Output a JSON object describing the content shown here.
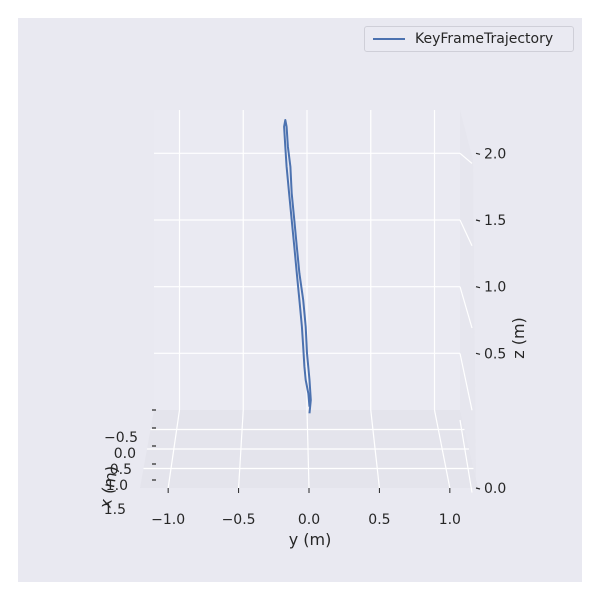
{
  "chart_data": {
    "type": "line",
    "projection": "3d",
    "title": "",
    "xlabel": "x (m)",
    "ylabel": "y (m)",
    "zlabel": "z (m)",
    "x_ticks": [
      "−0.5",
      "0.0",
      "0.5",
      "1.0",
      "1.5"
    ],
    "y_ticks": [
      "−1.0",
      "−0.5",
      "0.0",
      "0.5",
      "1.0"
    ],
    "z_ticks": [
      "0.0",
      "0.5",
      "1.0",
      "1.5",
      "2.0"
    ],
    "y_range": [
      -1.2,
      1.2
    ],
    "z_range": [
      0.0,
      2.4
    ],
    "legend": {
      "placement": "top-right",
      "entries": [
        "KeyFrameTrajectory"
      ]
    },
    "grid": true,
    "series": [
      {
        "name": "KeyFrameTrajectory",
        "color": "#4c72b0",
        "y": [
          0.02,
          0.03,
          0.02,
          0.0,
          -0.01,
          -0.03,
          -0.06,
          -0.08,
          -0.1,
          -0.12,
          -0.13,
          -0.15,
          -0.16,
          -0.17,
          -0.18,
          -0.17,
          -0.16,
          -0.14,
          -0.12,
          -0.1,
          -0.08,
          -0.06,
          -0.04,
          -0.03,
          -0.02,
          -0.01,
          0.01,
          0.02
        ],
        "z": [
          0.05,
          0.15,
          0.3,
          0.5,
          0.7,
          0.9,
          1.1,
          1.3,
          1.5,
          1.7,
          1.9,
          2.05,
          2.2,
          2.25,
          2.2,
          2.05,
          1.9,
          1.7,
          1.5,
          1.3,
          1.1,
          0.9,
          0.7,
          0.55,
          0.4,
          0.3,
          0.2,
          0.1
        ]
      }
    ]
  }
}
